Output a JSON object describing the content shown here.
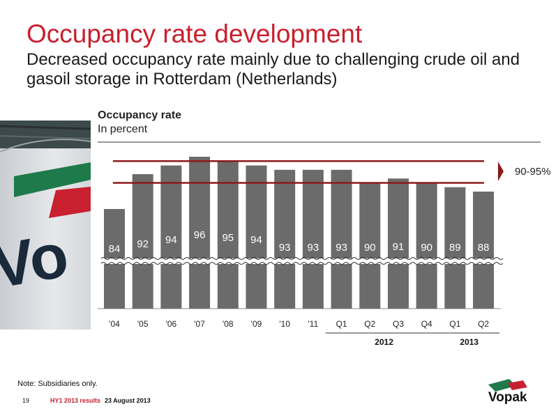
{
  "slide": {
    "title": "Occupancy rate development",
    "subtitle": "Decreased occupancy rate mainly due to challenging crude oil and gasoil storage in Rotterdam (Netherlands)",
    "note": "Note: Subsidiaries only.",
    "page_number": "19",
    "footer_results": "HY1 2013 results",
    "footer_date": "23 August 2013",
    "logo_text": "Vopak",
    "photo_logo_text": "Vo"
  },
  "colors": {
    "brand_red": "#c8202f",
    "bar_gray": "#6b6b6b",
    "band_line": "#8b1a1a",
    "logo_green": "#1e7a4a"
  },
  "chart_data": {
    "type": "bar",
    "title": "Occupancy rate",
    "unit": "In percent",
    "categories": [
      "'04",
      "'05",
      "'06",
      "'07",
      "'08",
      "'09",
      "'10",
      "'11",
      "Q1",
      "Q2",
      "Q3",
      "Q4",
      "Q1",
      "Q2"
    ],
    "values": [
      84,
      92,
      94,
      96,
      95,
      94,
      93,
      93,
      93,
      90,
      91,
      90,
      89,
      88
    ],
    "groups": [
      {
        "label": "2012",
        "categories": [
          8,
          11
        ]
      },
      {
        "label": "2013",
        "categories": [
          12,
          13
        ]
      }
    ],
    "target_band": {
      "label": "90-95%",
      "min": 90,
      "max": 95
    },
    "axis_break": true,
    "grid": false
  }
}
